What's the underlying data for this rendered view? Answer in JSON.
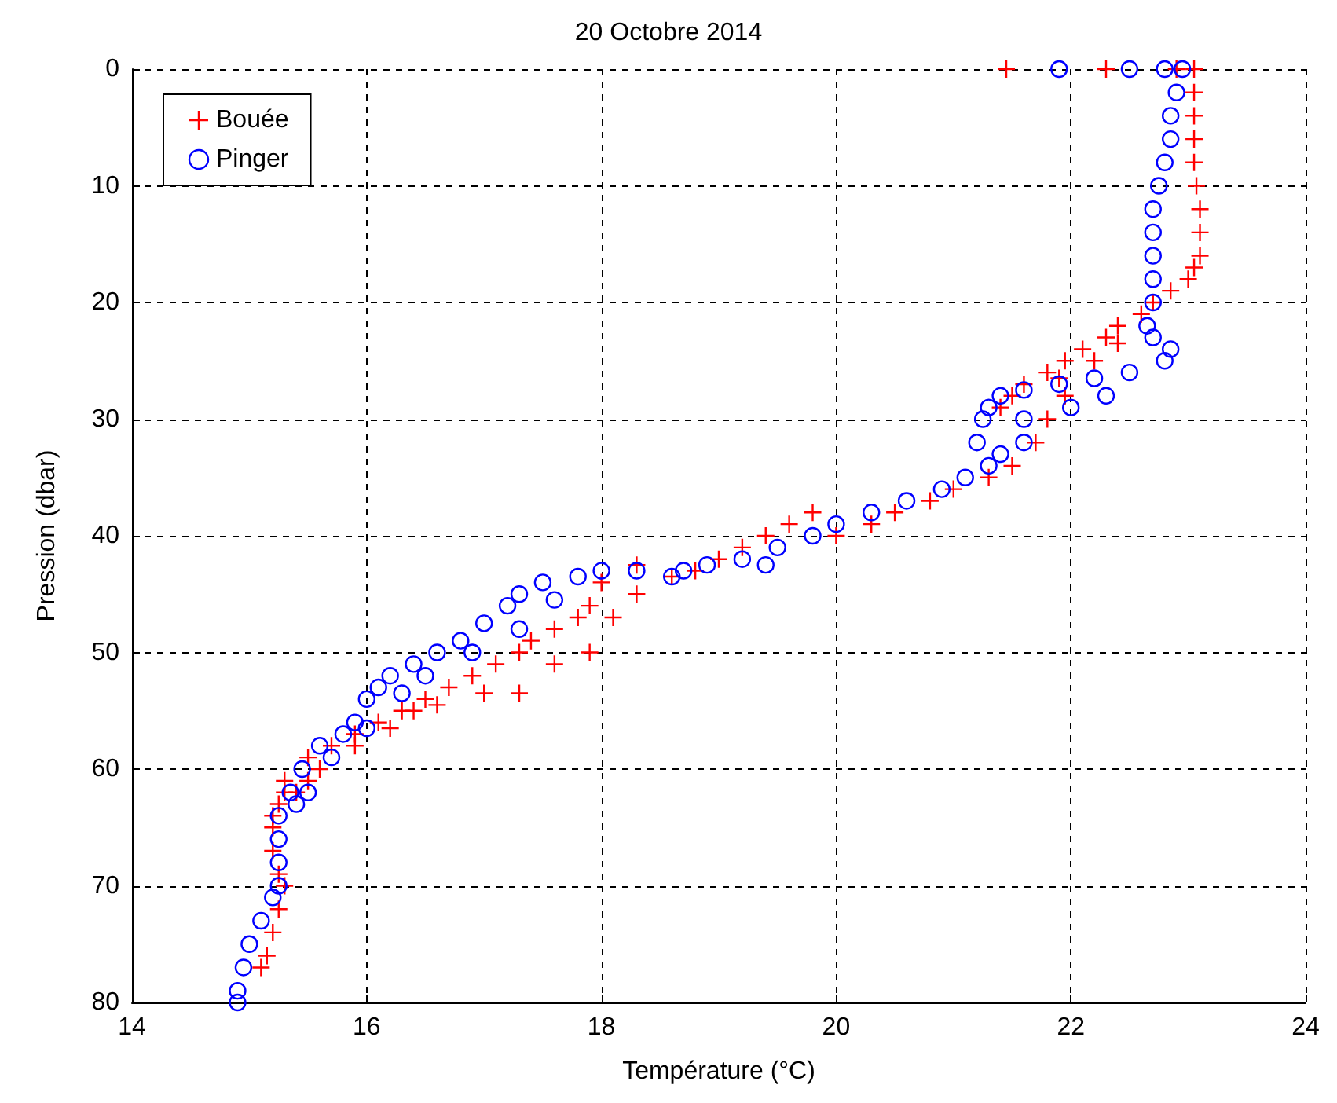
{
  "chart_data": {
    "type": "scatter",
    "title": "20 Octobre 2014",
    "xlabel": "Température (°C)",
    "ylabel": "Pression (dbar)",
    "xlim": [
      14,
      24
    ],
    "xticks": [
      14,
      16,
      18,
      20,
      22,
      24
    ],
    "ylim": [
      80,
      0
    ],
    "yticks": [
      0,
      10,
      20,
      30,
      40,
      50,
      60,
      70,
      80
    ],
    "grid": true,
    "legend": "top left",
    "series": [
      {
        "name": "Bouée",
        "color": "#ff0000",
        "marker": "cross",
        "x": [
          21.45,
          22.3,
          22.9,
          23.05,
          23.05,
          23.05,
          23.05,
          23.05,
          23.07,
          23.1,
          23.1,
          23.1,
          23.05,
          23.0,
          22.85,
          22.7,
          22.6,
          22.4,
          22.3,
          22.1,
          21.95,
          21.8,
          21.6,
          21.5,
          21.4,
          22.4,
          22.2,
          21.9,
          21.95,
          21.8,
          21.7,
          21.5,
          21.3,
          21.0,
          20.8,
          20.5,
          20.3,
          20.0,
          19.8,
          19.6,
          19.4,
          19.2,
          19.0,
          18.8,
          18.6,
          18.3,
          18.0,
          17.9,
          17.8,
          17.6,
          17.4,
          17.3,
          17.1,
          16.9,
          16.7,
          16.5,
          16.3,
          16.1,
          15.9,
          15.7,
          15.5,
          15.3,
          15.25,
          15.2,
          15.2,
          15.25,
          15.3,
          15.25,
          15.2,
          15.15,
          15.1,
          18.3,
          18.1,
          17.9,
          17.6,
          17.3,
          17.0,
          16.6,
          16.4,
          16.2,
          15.9,
          15.6,
          15.5,
          15.4,
          15.3,
          15.2
        ],
        "values": [
          0,
          0,
          0,
          0,
          2,
          4,
          6,
          8,
          10,
          12,
          14,
          16,
          17,
          18,
          19,
          20,
          21,
          22,
          23,
          24,
          25,
          26,
          27,
          28,
          29,
          23.5,
          25,
          26.5,
          28,
          30,
          32,
          34,
          35,
          36,
          37,
          38,
          39,
          40,
          38,
          39,
          40,
          41,
          42,
          43,
          43.5,
          42.5,
          44,
          46,
          47,
          48,
          49,
          50,
          51,
          52,
          53,
          54,
          55,
          56,
          57,
          58,
          59,
          61,
          63,
          65,
          67,
          69,
          70,
          72,
          74,
          76,
          77,
          45,
          47,
          50,
          51,
          53.5,
          53.5,
          54.5,
          55,
          56.5,
          58,
          60,
          61,
          62,
          62,
          64
        ]
      },
      {
        "name": "Pinger",
        "color": "#0000ff",
        "marker": "circle",
        "x": [
          21.9,
          22.5,
          22.8,
          22.95,
          22.9,
          22.85,
          22.85,
          22.8,
          22.75,
          22.7,
          22.7,
          22.7,
          22.7,
          22.7,
          22.65,
          22.7,
          22.85,
          22.8,
          22.5,
          22.2,
          21.9,
          21.6,
          21.4,
          21.3,
          21.25,
          21.2,
          21.3,
          21.1,
          20.9,
          20.6,
          20.3,
          20.0,
          19.8,
          19.5,
          19.2,
          18.9,
          18.6,
          18.3,
          18.0,
          17.8,
          17.5,
          17.3,
          17.2,
          17.0,
          16.8,
          16.6,
          16.4,
          16.2,
          16.1,
          16.0,
          15.9,
          15.8,
          15.6,
          15.45,
          15.35,
          15.25,
          15.25,
          15.25,
          15.25,
          15.2,
          15.1,
          15.0,
          14.95,
          14.9,
          14.9,
          21.6,
          21.4,
          21.6,
          22.0,
          22.3,
          19.4,
          18.7,
          17.6,
          17.3,
          16.9,
          16.5,
          16.3,
          16.0,
          15.7,
          15.5,
          15.4
        ],
        "values": [
          0,
          0,
          0,
          0,
          2,
          4,
          6,
          8,
          10,
          12,
          14,
          16,
          18,
          20,
          22,
          23,
          24,
          25,
          26,
          26.5,
          27,
          27.5,
          28,
          29,
          30,
          32,
          34,
          35,
          36,
          37,
          38,
          39,
          40,
          41,
          42,
          42.5,
          43.5,
          43,
          43,
          43.5,
          44,
          45,
          46,
          47.5,
          49,
          50,
          51,
          52,
          53,
          54,
          56,
          57,
          58,
          60,
          62,
          64,
          66,
          68,
          70,
          71,
          73,
          75,
          77,
          79,
          80,
          30,
          33,
          32,
          29,
          28,
          42.5,
          43,
          45.5,
          48,
          50,
          52,
          53.5,
          56.5,
          59,
          62,
          63
        ]
      }
    ]
  }
}
